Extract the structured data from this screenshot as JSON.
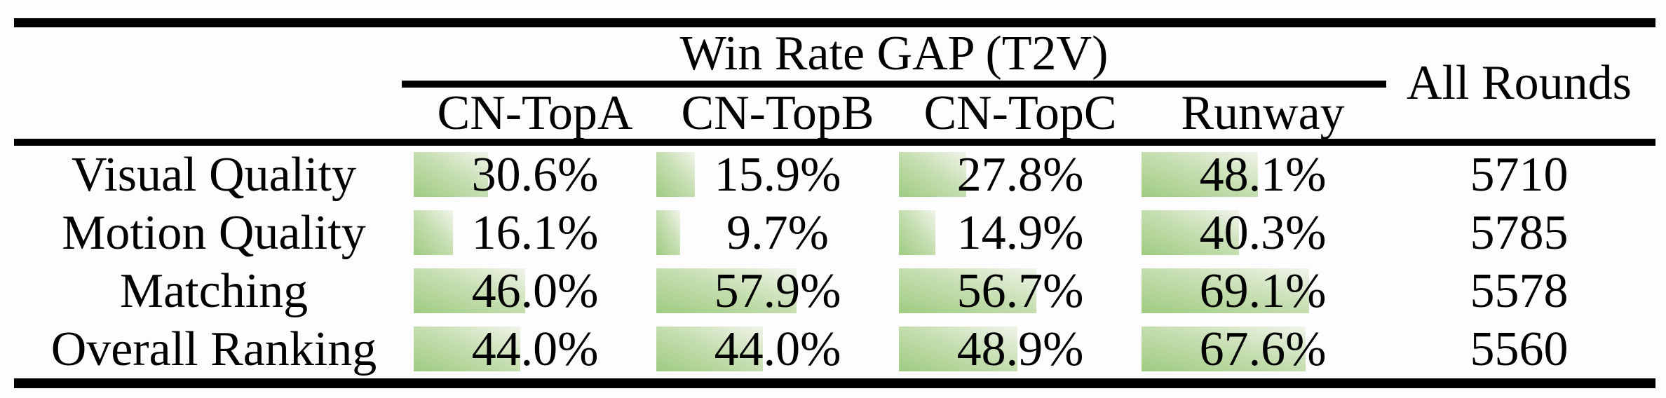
{
  "table": {
    "group_header": "Win Rate GAP (T2V)",
    "all_rounds_header": "All Rounds",
    "columns": [
      "CN-TopA",
      "CN-TopB",
      "CN-TopC",
      "Runway"
    ],
    "rows": [
      {
        "label": "Visual Quality",
        "values": [
          "30.6%",
          "15.9%",
          "27.8%",
          "48.1%"
        ],
        "all_rounds": "5710"
      },
      {
        "label": "Motion Quality",
        "values": [
          "16.1%",
          "9.7%",
          "14.9%",
          "40.3%"
        ],
        "all_rounds": "5785"
      },
      {
        "label": "Matching",
        "values": [
          "46.0%",
          "57.9%",
          "56.7%",
          "69.1%"
        ],
        "all_rounds": "5578"
      },
      {
        "label": "Overall Ranking",
        "values": [
          "44.0%",
          "44.0%",
          "48.9%",
          "67.6%"
        ],
        "all_rounds": "5560"
      }
    ],
    "bar_color_dark": "#9fcb81",
    "bar_color_light": "#f0f4ea",
    "rule_color": "#000000"
  },
  "chart_data": {
    "type": "table",
    "title": "Win Rate GAP (T2V)",
    "columns": [
      "CN-TopA",
      "CN-TopB",
      "CN-TopC",
      "Runway",
      "All Rounds"
    ],
    "categories": [
      "Visual Quality",
      "Motion Quality",
      "Matching",
      "Overall Ranking"
    ],
    "series": [
      {
        "name": "CN-TopA",
        "values": [
          30.6,
          16.1,
          46.0,
          44.0
        ]
      },
      {
        "name": "CN-TopB",
        "values": [
          15.9,
          9.7,
          57.9,
          44.0
        ]
      },
      {
        "name": "CN-TopC",
        "values": [
          27.8,
          14.9,
          56.7,
          48.9
        ]
      },
      {
        "name": "Runway",
        "values": [
          48.1,
          40.3,
          69.1,
          67.6
        ]
      }
    ],
    "all_rounds": [
      5710,
      5785,
      5578,
      5560
    ],
    "value_unit": "percent",
    "cell_bars": "green gradient data bars, width proportional to win-rate gap value",
    "bar_range": [
      0,
      100
    ]
  }
}
